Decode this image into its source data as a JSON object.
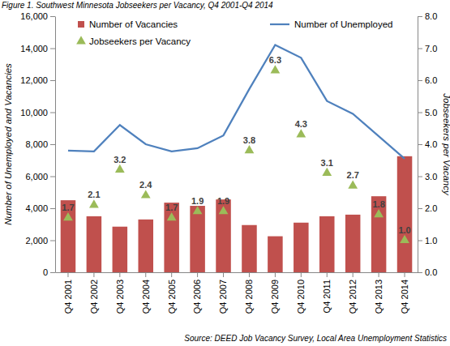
{
  "chart_data": {
    "type": "combo",
    "title": "Figure 1. Southwest Minnesota Jobseekers per Vacancy, Q4 2001-Q4 2014",
    "source": "Source: DEED Job Vacancy Survey, Local Area Unemployment Statistics",
    "y_label": "Number of Unemployed and Vacancies",
    "y2_label": "Jobseekers per Vacancy",
    "categories": [
      "Q4 2001",
      "Q4 2002",
      "Q4 2003",
      "Q4 2004",
      "Q4 2005",
      "Q4 2006",
      "Q4 2007",
      "Q4 2008",
      "Q4 2009",
      "Q4 2010",
      "Q4 2011",
      "Q4 2012",
      "Q4 2013",
      "Q4 2014"
    ],
    "series": [
      {
        "name": "Number of Vacancies",
        "type": "bar",
        "color": "#c0504d",
        "values": [
          4500,
          3500,
          2850,
          3300,
          4350,
          4150,
          4550,
          2950,
          2250,
          3100,
          3500,
          3600,
          4750,
          7250
        ]
      },
      {
        "name": "Number of Unemployed",
        "type": "line",
        "color": "#4f81bd",
        "line_style": "solid",
        "values": [
          7600,
          7550,
          9200,
          8000,
          7550,
          7750,
          8550,
          11450,
          14200,
          13400,
          10700,
          9900,
          8500,
          7100
        ]
      },
      {
        "name": "Jobseekers per Vacancy",
        "type": "scatter",
        "color": "#9bbb59",
        "marker": "triangle",
        "axis": "y2",
        "data_labels": true,
        "values": [
          1.7,
          2.1,
          3.2,
          2.4,
          1.7,
          1.9,
          1.9,
          3.8,
          6.3,
          4.3,
          3.1,
          2.7,
          1.8,
          1.0
        ],
        "value_labels": [
          "1.7",
          "2.1",
          "3.2",
          "2.4",
          "1.7",
          "1.9",
          "1.9",
          "3.8",
          "6.3",
          "4.3",
          "3.1",
          "2.7",
          "1.8",
          "1.0"
        ]
      }
    ],
    "ylim": [
      0,
      16000
    ],
    "yticks": [
      0,
      {
        "value": 2000,
        "label": "2,000"
      },
      {
        "value": 4000,
        "label": "4,000"
      },
      {
        "value": 6000,
        "label": "6,000"
      },
      {
        "value": 8000,
        "label": "8,000"
      },
      {
        "value": 10000,
        "label": "10,000"
      },
      {
        "value": 12000,
        "label": "12,000"
      },
      {
        "value": 14000,
        "label": "14,000"
      },
      {
        "value": 16000,
        "label": "16,000"
      }
    ],
    "y2lim": [
      0,
      8
    ],
    "y2ticks": [
      {
        "value": 0,
        "label": "0.0"
      },
      {
        "value": 1,
        "label": "1.0"
      },
      {
        "value": 2,
        "label": "2.0"
      },
      {
        "value": 3,
        "label": "3.0"
      },
      {
        "value": 4,
        "label": "4.0"
      },
      {
        "value": 5,
        "label": "5.0"
      },
      {
        "value": 6,
        "label": "6.0"
      },
      {
        "value": 7,
        "label": "7.0"
      },
      {
        "value": 8,
        "label": "8.0"
      }
    ],
    "grid": false,
    "legend": "top"
  }
}
